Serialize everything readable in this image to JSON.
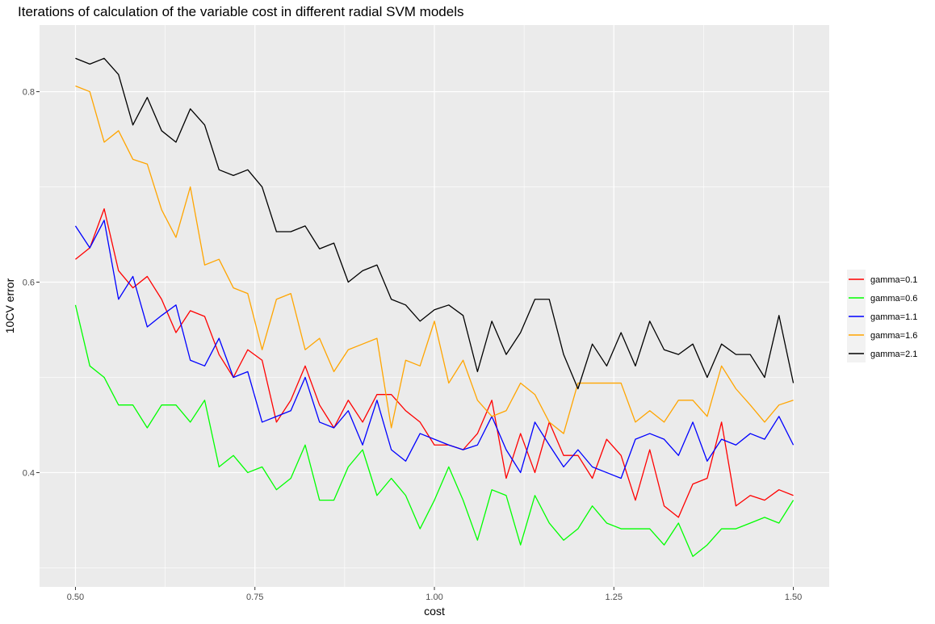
{
  "chart_data": {
    "type": "line",
    "title": "Iterations of calculation of the variable cost in different radial SVM models",
    "xlabel": "cost",
    "ylabel": "10CV error",
    "xlim": [
      0.45,
      1.55
    ],
    "ylim": [
      0.28,
      0.87
    ],
    "x_ticks": [
      0.5,
      0.75,
      1.0,
      1.25,
      1.5
    ],
    "x_tick_labels": [
      "0.50",
      "0.75",
      "1.00",
      "1.25",
      "1.50"
    ],
    "y_ticks": [
      0.4,
      0.6,
      0.8
    ],
    "y_tick_labels": [
      "0.4",
      "0.6",
      "0.8"
    ],
    "grid": true,
    "legend_position": "right",
    "x": [
      0.5,
      0.52,
      0.54,
      0.56,
      0.58,
      0.6,
      0.62,
      0.64,
      0.66,
      0.68,
      0.7,
      0.72,
      0.74,
      0.76,
      0.78,
      0.8,
      0.82,
      0.84,
      0.86,
      0.88,
      0.9,
      0.92,
      0.94,
      0.96,
      0.98,
      1.0,
      1.02,
      1.04,
      1.06,
      1.08,
      1.1,
      1.12,
      1.14,
      1.16,
      1.18,
      1.2,
      1.22,
      1.24,
      1.26,
      1.28,
      1.3,
      1.32,
      1.34,
      1.36,
      1.38,
      1.4,
      1.42,
      1.44,
      1.46,
      1.48,
      1.5
    ],
    "series": [
      {
        "name": "gamma=0.1",
        "color": "#ff0000",
        "values": [
          0.624,
          0.636,
          0.677,
          0.612,
          0.594,
          0.606,
          0.582,
          0.547,
          0.57,
          0.564,
          0.524,
          0.5,
          0.529,
          0.518,
          0.453,
          0.476,
          0.512,
          0.471,
          0.447,
          0.476,
          0.453,
          0.482,
          0.482,
          0.465,
          0.453,
          0.429,
          0.429,
          0.424,
          0.441,
          0.476,
          0.394,
          0.441,
          0.4,
          0.453,
          0.418,
          0.418,
          0.394,
          0.435,
          0.418,
          0.371,
          0.424,
          0.365,
          0.353,
          0.388,
          0.394,
          0.453,
          0.365,
          0.376,
          0.371,
          0.382,
          0.376
        ]
      },
      {
        "name": "gamma=0.6",
        "color": "#00ff00",
        "values": [
          0.576,
          0.512,
          0.5,
          0.471,
          0.471,
          0.447,
          0.471,
          0.471,
          0.453,
          0.476,
          0.406,
          0.418,
          0.4,
          0.406,
          0.382,
          0.394,
          0.429,
          0.371,
          0.371,
          0.406,
          0.424,
          0.376,
          0.394,
          0.376,
          0.341,
          0.371,
          0.406,
          0.371,
          0.329,
          0.382,
          0.376,
          0.324,
          0.376,
          0.347,
          0.329,
          0.341,
          0.365,
          0.347,
          0.341,
          0.341,
          0.341,
          0.324,
          0.347,
          0.312,
          0.324,
          0.341,
          0.341,
          0.347,
          0.353,
          0.347,
          0.371
        ]
      },
      {
        "name": "gamma=1.1",
        "color": "#0000ff",
        "values": [
          0.659,
          0.636,
          0.665,
          0.582,
          0.606,
          0.553,
          0.565,
          0.576,
          0.518,
          0.512,
          0.541,
          0.5,
          0.506,
          0.453,
          0.459,
          0.465,
          0.5,
          0.453,
          0.447,
          0.465,
          0.429,
          0.476,
          0.424,
          0.412,
          0.441,
          0.435,
          0.429,
          0.424,
          0.429,
          0.459,
          0.424,
          0.4,
          0.453,
          0.429,
          0.406,
          0.424,
          0.406,
          0.4,
          0.394,
          0.435,
          0.441,
          0.435,
          0.418,
          0.453,
          0.412,
          0.435,
          0.429,
          0.441,
          0.435,
          0.459,
          0.429
        ]
      },
      {
        "name": "gamma=1.6",
        "color": "#ffa500",
        "values": [
          0.806,
          0.8,
          0.747,
          0.759,
          0.729,
          0.724,
          0.676,
          0.647,
          0.7,
          0.618,
          0.624,
          0.594,
          0.588,
          0.529,
          0.582,
          0.588,
          0.529,
          0.541,
          0.506,
          0.529,
          0.535,
          0.541,
          0.447,
          0.518,
          0.512,
          0.559,
          0.494,
          0.518,
          0.476,
          0.459,
          0.465,
          0.494,
          0.482,
          0.453,
          0.441,
          0.494,
          0.494,
          0.494,
          0.494,
          0.453,
          0.465,
          0.453,
          0.476,
          0.476,
          0.459,
          0.512,
          0.488,
          0.471,
          0.453,
          0.471,
          0.476
        ]
      },
      {
        "name": "gamma=2.1",
        "color": "#000000",
        "values": [
          0.835,
          0.829,
          0.835,
          0.818,
          0.765,
          0.794,
          0.759,
          0.747,
          0.782,
          0.765,
          0.718,
          0.712,
          0.718,
          0.7,
          0.653,
          0.653,
          0.659,
          0.635,
          0.641,
          0.6,
          0.612,
          0.618,
          0.582,
          0.576,
          0.559,
          0.571,
          0.576,
          0.565,
          0.506,
          0.559,
          0.524,
          0.547,
          0.582,
          0.582,
          0.524,
          0.488,
          0.535,
          0.512,
          0.547,
          0.512,
          0.559,
          0.529,
          0.524,
          0.535,
          0.5,
          0.535,
          0.524,
          0.524,
          0.5,
          0.565,
          0.494
        ]
      }
    ]
  }
}
